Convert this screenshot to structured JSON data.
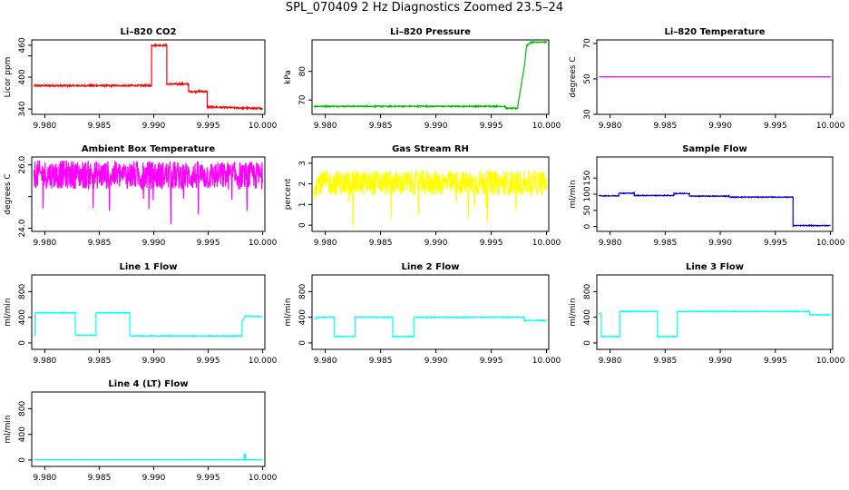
{
  "page": {
    "title": "SPL_070409  2 Hz Diagnostics Zoomed 23.5–24"
  },
  "chart_data": [
    {
      "type": "line",
      "title": "Li–820 CO2",
      "xlabel": "",
      "ylabel": "Licor ppm",
      "color": "#ff0000",
      "xlim": [
        9.9788,
        10.0002
      ],
      "ylim": [
        330,
        470
      ],
      "xticks": [
        "9.980",
        "9.985",
        "9.990",
        "9.995",
        "10.000"
      ],
      "yticks": [
        340,
        400,
        440,
        460
      ],
      "ytick_labels": [
        "340",
        "400",
        "",
        "460"
      ],
      "series": [
        {
          "style": "step",
          "noise": 1.5,
          "x": [
            9.979,
            9.9898,
            9.9898,
            9.9912,
            9.9912,
            9.9932,
            9.9932,
            9.9949,
            9.9949,
            9.9997,
            10.0
          ],
          "y": [
            384,
            384,
            460,
            460,
            387,
            387,
            373,
            373,
            344,
            341,
            341
          ]
        }
      ]
    },
    {
      "type": "line",
      "title": "Li–820 Pressure",
      "xlabel": "",
      "ylabel": "kPa",
      "color": "#00bb00",
      "xlim": [
        9.9788,
        10.0002
      ],
      "ylim": [
        65,
        91
      ],
      "xticks": [
        "9.980",
        "9.985",
        "9.990",
        "9.995",
        "10.000"
      ],
      "yticks": [
        70,
        80
      ],
      "ytick_labels": [
        "70",
        "80"
      ],
      "series": [
        {
          "style": "line",
          "noise": 0.2,
          "x": [
            9.979,
            9.9963,
            9.9963,
            9.9974,
            9.9974,
            9.998,
            9.9982,
            9.9986,
            10.0
          ],
          "y": [
            67.8,
            67.8,
            67.1,
            67.1,
            68.0,
            82,
            89,
            90.2,
            90.2
          ]
        }
      ]
    },
    {
      "type": "line",
      "title": "Li–820 Temperature",
      "xlabel": "",
      "ylabel": "degrees C",
      "color": "#ff00ff",
      "xlim": [
        9.9788,
        10.0002
      ],
      "ylim": [
        30,
        72
      ],
      "xticks": [
        "9.980",
        "9.985",
        "9.990",
        "9.995",
        "10.000"
      ],
      "yticks": [
        30,
        50,
        70
      ],
      "ytick_labels": [
        "30",
        "50",
        "70"
      ],
      "series": [
        {
          "style": "line",
          "noise": 0,
          "x": [
            9.979,
            10.0
          ],
          "y": [
            51.2,
            51.2
          ]
        }
      ]
    },
    {
      "type": "line",
      "title": "Ambient Box Temperature",
      "xlabel": "",
      "ylabel": "degrees C",
      "color": "#ff00ff",
      "xlim": [
        9.9788,
        10.0002
      ],
      "ylim": [
        23.9,
        26.25
      ],
      "xticks": [
        "9.980",
        "9.985",
        "9.990",
        "9.995",
        "10.000"
      ],
      "yticks": [
        24.0,
        25.0,
        26.0
      ],
      "ytick_labels": [
        "24.0",
        "",
        "26.0"
      ],
      "series": [
        {
          "style": "noise",
          "noise": 0.45,
          "spikes": true,
          "x": [
            9.979,
            10.0
          ],
          "y": [
            25.7,
            25.65
          ]
        }
      ]
    },
    {
      "type": "line",
      "title": "Gas Stream RH",
      "xlabel": "",
      "ylabel": "percent",
      "color": "#ffff00",
      "xlim": [
        9.9788,
        10.0002
      ],
      "ylim": [
        -0.3,
        3.3
      ],
      "xticks": [
        "9.980",
        "9.985",
        "9.990",
        "9.995",
        "10.000"
      ],
      "yticks": [
        0,
        1,
        2,
        3
      ],
      "ytick_labels": [
        "0",
        "1",
        "2",
        "3"
      ],
      "series": [
        {
          "style": "noise",
          "noise": 0.6,
          "spikes": true,
          "x": [
            9.979,
            10.0
          ],
          "y": [
            2.05,
            2.05
          ]
        }
      ]
    },
    {
      "type": "line",
      "title": "Sample Flow",
      "xlabel": "",
      "ylabel": "ml/min",
      "color": "#0000cc",
      "xlim": [
        9.9788,
        10.0002
      ],
      "ylim": [
        -15,
        215
      ],
      "xticks": [
        "9.980",
        "9.985",
        "9.990",
        "9.995",
        "10.000"
      ],
      "yticks": [
        0,
        50,
        100,
        150
      ],
      "ytick_labels": [
        "0",
        "50",
        "100",
        "150"
      ],
      "series": [
        {
          "style": "step",
          "noise": 1.2,
          "x": [
            9.979,
            9.9808,
            9.9808,
            9.9822,
            9.9822,
            9.9858,
            9.9858,
            9.9872,
            9.9872,
            9.9908,
            9.9908,
            9.9966,
            9.9966,
            10.0
          ],
          "y": [
            95,
            95,
            103,
            103,
            96,
            96,
            102,
            102,
            94,
            94,
            91,
            91,
            3,
            3
          ]
        }
      ]
    },
    {
      "type": "line",
      "title": "Line 1 Flow",
      "xlabel": "",
      "ylabel": "ml/min",
      "color": "#00ffff",
      "xlim": [
        9.9788,
        10.0002
      ],
      "ylim": [
        -100,
        1060
      ],
      "xticks": [
        "9.980",
        "9.985",
        "9.990",
        "9.995",
        "10.000"
      ],
      "yticks": [
        0,
        400,
        800
      ],
      "ytick_labels": [
        "0",
        "400",
        "800"
      ],
      "series": [
        {
          "style": "step",
          "noise": 6,
          "x": [
            9.979,
            9.9791,
            9.9791,
            9.9828,
            9.9828,
            9.9847,
            9.9847,
            9.9878,
            9.9878,
            9.9981,
            9.9981,
            9.9984,
            10.0
          ],
          "y": [
            120,
            120,
            470,
            470,
            120,
            120,
            470,
            470,
            110,
            110,
            330,
            420,
            410
          ]
        }
      ]
    },
    {
      "type": "line",
      "title": "Line 2 Flow",
      "xlabel": "",
      "ylabel": "ml/min",
      "color": "#00ffff",
      "xlim": [
        9.9788,
        10.0002
      ],
      "ylim": [
        -100,
        1060
      ],
      "xticks": [
        "9.980",
        "9.985",
        "9.990",
        "9.995",
        "10.000"
      ],
      "yticks": [
        0,
        400,
        800
      ],
      "ytick_labels": [
        "0",
        "400",
        "800"
      ],
      "series": [
        {
          "style": "step",
          "noise": 6,
          "x": [
            9.979,
            9.9792,
            9.9792,
            9.9808,
            9.9808,
            9.9827,
            9.9827,
            9.9861,
            9.9861,
            9.988,
            9.988,
            9.998,
            9.998,
            10.0
          ],
          "y": [
            380,
            380,
            400,
            400,
            100,
            100,
            400,
            400,
            100,
            100,
            400,
            400,
            350,
            350
          ]
        }
      ]
    },
    {
      "type": "line",
      "title": "Line 3 Flow",
      "xlabel": "",
      "ylabel": "ml/min",
      "color": "#00ffff",
      "xlim": [
        9.9788,
        10.0002
      ],
      "ylim": [
        -100,
        1060
      ],
      "xticks": [
        "9.980",
        "9.985",
        "9.990",
        "9.995",
        "10.000"
      ],
      "yticks": [
        0,
        400,
        800
      ],
      "ytick_labels": [
        "0",
        "400",
        "800"
      ],
      "series": [
        {
          "style": "step",
          "noise": 6,
          "x": [
            9.979,
            9.9792,
            9.9792,
            9.9809,
            9.9809,
            9.9843,
            9.9843,
            9.9861,
            9.9861,
            9.9981,
            9.9981,
            10.0
          ],
          "y": [
            460,
            460,
            100,
            100,
            490,
            490,
            100,
            100,
            490,
            490,
            440,
            440
          ]
        }
      ]
    },
    {
      "type": "line",
      "title": "Line 4 (LT) Flow",
      "xlabel": "",
      "ylabel": "ml/min",
      "color": "#00ffff",
      "xlim": [
        9.9788,
        10.0002
      ],
      "ylim": [
        -100,
        1060
      ],
      "xticks": [
        "9.980",
        "9.985",
        "9.990",
        "9.995",
        "10.000"
      ],
      "yticks": [
        0,
        400,
        800
      ],
      "ytick_labels": [
        "0",
        "400",
        "800"
      ],
      "series": [
        {
          "style": "line",
          "noise": 2,
          "x": [
            9.979,
            9.9983,
            9.9983,
            9.9984,
            9.9984,
            10.0
          ],
          "y": [
            5,
            5,
            90,
            90,
            5,
            5
          ]
        }
      ]
    }
  ]
}
